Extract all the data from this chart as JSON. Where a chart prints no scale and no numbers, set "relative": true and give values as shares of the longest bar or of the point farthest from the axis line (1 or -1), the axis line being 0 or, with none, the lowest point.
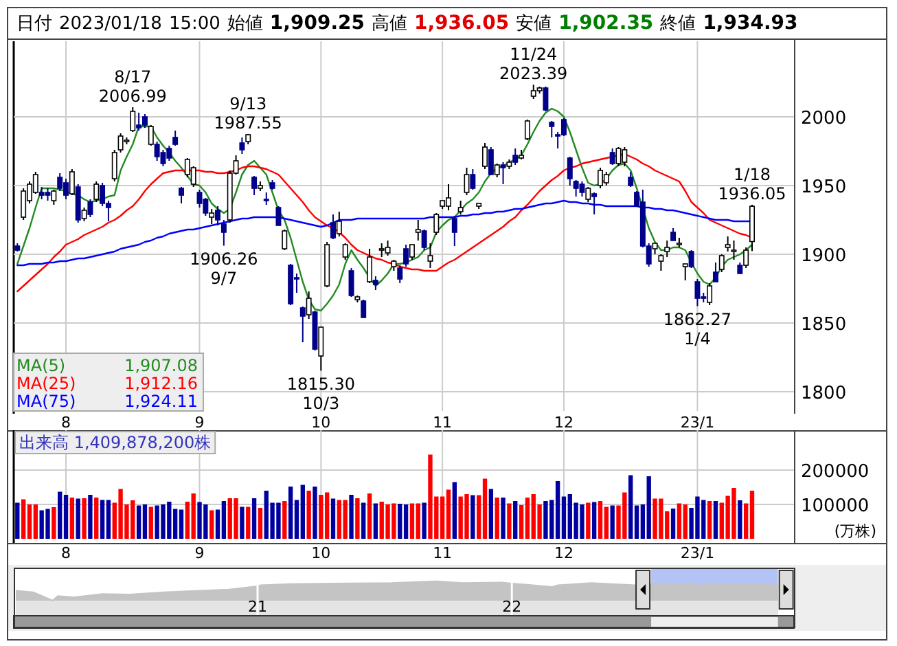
{
  "chart_data": [
    {
      "type": "candlestick",
      "title": "日付 2023/01/18 15:00 始値 1,909.25 高値 1,936.05 安値 1,902.35 終値 1,934.93",
      "categories": [
        null,
        null,
        null,
        null,
        null,
        null,
        null,
        null,
        "8",
        null,
        null,
        null,
        null,
        null,
        null,
        null,
        null,
        null,
        null,
        null,
        null,
        null,
        null,
        null,
        null,
        null,
        null,
        null,
        null,
        null,
        "9",
        null,
        null,
        null,
        null,
        null,
        null,
        null,
        null,
        null,
        null,
        null,
        null,
        null,
        null,
        null,
        null,
        null,
        null,
        null,
        "10",
        null,
        null,
        null,
        null,
        null,
        null,
        null,
        null,
        null,
        null,
        null,
        null,
        null,
        null,
        null,
        null,
        null,
        null,
        null,
        "11",
        null,
        null,
        null,
        null,
        null,
        null,
        null,
        null,
        null,
        null,
        null,
        null,
        null,
        null,
        null,
        null,
        null,
        null,
        null,
        "12",
        null,
        null,
        null,
        null,
        null,
        null,
        null,
        null,
        null,
        null,
        null,
        null,
        null,
        null,
        null,
        null,
        null,
        null,
        null,
        null,
        null,
        "23/1",
        null,
        null,
        null,
        null,
        null,
        null,
        null,
        null,
        null
      ],
      "ohlc": [
        [
          1906,
          1908,
          1902,
          1903
        ],
        [
          1927,
          1948,
          1925,
          1946
        ],
        [
          1939,
          1953,
          1937,
          1951
        ],
        [
          1945,
          1960,
          1944,
          1958
        ],
        [
          1945,
          1949,
          1940,
          1943
        ],
        [
          1945,
          1948,
          1939,
          1943
        ],
        [
          1939,
          1947,
          1936,
          1946
        ],
        [
          1956,
          1959,
          1946,
          1948
        ],
        [
          1952,
          1955,
          1940,
          1943
        ],
        [
          1944,
          1962,
          1943,
          1960
        ],
        [
          1949,
          1951,
          1923,
          1925
        ],
        [
          1926,
          1934,
          1924,
          1932
        ],
        [
          1938,
          1940,
          1927,
          1929
        ],
        [
          1940,
          1953,
          1938,
          1951
        ],
        [
          1950,
          1952,
          1935,
          1937
        ],
        [
          1937,
          1939,
          1924,
          1934
        ],
        [
          1955,
          1976,
          1953,
          1974
        ],
        [
          1976,
          1988,
          1974,
          1986
        ],
        [
          1982,
          1985,
          1980,
          1983
        ],
        [
          1990,
          2006.99,
          1989,
          2004
        ],
        [
          1994,
          2003,
          1990,
          1992
        ],
        [
          2000,
          2002,
          1992,
          1994
        ],
        [
          1980,
          1994,
          1979,
          1993
        ],
        [
          1980,
          1982,
          1968,
          1971
        ],
        [
          1974,
          1976,
          1964,
          1966
        ],
        [
          1977,
          1979,
          1968,
          1970
        ],
        [
          1985,
          1990,
          1979,
          1980
        ],
        [
          1948,
          1949,
          1937,
          1943
        ],
        [
          1958,
          1970,
          1956,
          1969
        ],
        [
          1951,
          1964,
          1949,
          1963
        ],
        [
          1945,
          1947,
          1934,
          1937
        ],
        [
          1940,
          1941,
          1928,
          1930
        ],
        [
          1927,
          1933,
          1922,
          1930
        ],
        [
          1932,
          1935,
          1921,
          1925
        ],
        [
          1922,
          1925,
          1906.26,
          1916
        ],
        [
          1925,
          1961,
          1923,
          1959
        ],
        [
          1959,
          1972,
          1958,
          1968
        ],
        [
          1981,
          1985,
          1973,
          1976
        ],
        [
          1982,
          1987.55,
          1980,
          1987
        ],
        [
          1956,
          1957,
          1943,
          1948
        ],
        [
          1948,
          1953,
          1946,
          1950
        ],
        [
          1940,
          1945,
          1936,
          1939
        ],
        [
          1952,
          1954,
          1947,
          1948
        ],
        [
          1934,
          1935,
          1921,
          1921
        ],
        [
          1904,
          1918,
          1903,
          1917
        ],
        [
          1892,
          1893,
          1863,
          1864
        ],
        [
          1883,
          1886,
          1872,
          1882
        ],
        [
          1861,
          1862,
          1836,
          1855
        ],
        [
          1856,
          1873,
          1853,
          1868
        ],
        [
          1858,
          1859,
          1830,
          1831
        ],
        [
          1826,
          1847,
          1815.3,
          1847
        ],
        [
          1877,
          1909,
          1876,
          1907
        ],
        [
          1923,
          1929,
          1911,
          1912
        ],
        [
          1915,
          1931,
          1913,
          1924
        ],
        [
          1898,
          1908,
          1896,
          1907
        ],
        [
          1888,
          1890,
          1869,
          1870
        ],
        [
          1867,
          1870,
          1865,
          1869
        ],
        [
          1866,
          1867,
          1854,
          1854
        ],
        [
          1880,
          1904,
          1879,
          1898
        ],
        [
          1881,
          1884,
          1874,
          1878
        ],
        [
          1903,
          1908,
          1898,
          1904
        ],
        [
          1901,
          1910,
          1899,
          1905
        ],
        [
          1891,
          1896,
          1888,
          1895
        ],
        [
          1890,
          1892,
          1879,
          1882
        ],
        [
          1904,
          1907,
          1891,
          1893
        ],
        [
          1898,
          1907,
          1896,
          1907
        ],
        [
          1916,
          1925,
          1910,
          1918
        ],
        [
          1917,
          1918,
          1903,
          1905
        ],
        [
          1895,
          1908,
          1890,
          1899
        ],
        [
          1916,
          1930,
          1914,
          1929
        ],
        [
          1935,
          1939,
          1933,
          1939
        ],
        [
          1935,
          1951,
          1932,
          1941
        ],
        [
          1926,
          1928,
          1906,
          1916
        ],
        [
          1931,
          1939,
          1929,
          1934
        ],
        [
          1945,
          1963,
          1943,
          1958
        ],
        [
          1958,
          1962,
          1947,
          1948
        ],
        [
          1935,
          1937,
          1933,
          1937
        ],
        [
          1964,
          1981,
          1962,
          1978
        ],
        [
          1976,
          1978,
          1958,
          1958
        ],
        [
          1958,
          1966,
          1956,
          1965
        ],
        [
          1965,
          1967,
          1951,
          1963
        ],
        [
          1964,
          1969,
          1962,
          1967
        ],
        [
          1972,
          1977,
          1965,
          1967
        ],
        [
          1970,
          1976,
          1969,
          1972
        ],
        [
          1984,
          1998,
          1983,
          1997
        ],
        [
          2015,
          2023.39,
          2013,
          2019
        ],
        [
          2019,
          2022,
          2017,
          2021
        ],
        [
          2021,
          2022,
          2004,
          2005
        ],
        [
          1996,
          1997,
          1985,
          1993
        ],
        [
          1987,
          1989,
          1977,
          1986
        ],
        [
          1998,
          1999,
          1986,
          1987
        ],
        [
          1970,
          1971,
          1950,
          1955
        ],
        [
          1953,
          1954,
          1942,
          1948
        ],
        [
          1951,
          1953,
          1942,
          1945
        ],
        [
          1940,
          1949,
          1938,
          1948
        ],
        [
          1944,
          1945,
          1929,
          1942
        ],
        [
          1950,
          1963,
          1948,
          1961
        ],
        [
          1952,
          1960,
          1950,
          1958
        ],
        [
          1974,
          1977,
          1965,
          1966
        ],
        [
          1966,
          1978,
          1964,
          1977
        ],
        [
          1967,
          1978,
          1964,
          1976
        ],
        [
          1956,
          1960,
          1949,
          1950
        ],
        [
          1945,
          1946,
          1935,
          1935
        ],
        [
          1938,
          1947,
          1905,
          1906
        ],
        [
          1906,
          1908,
          1891,
          1893
        ],
        [
          1904,
          1908,
          1900,
          1908
        ],
        [
          1895,
          1900,
          1888,
          1899
        ],
        [
          1902,
          1910,
          1898,
          1905
        ],
        [
          1916,
          1919,
          1910,
          1910
        ],
        [
          1907,
          1912,
          1905,
          1908
        ],
        [
          1891,
          1893,
          1881,
          1893
        ],
        [
          1902,
          1903,
          1890,
          1891
        ],
        [
          1880,
          1882,
          1862.27,
          1868
        ],
        [
          1869,
          1872,
          1865,
          1868
        ],
        [
          1865,
          1879,
          1863,
          1877
        ],
        [
          1887,
          1894,
          1880,
          1880
        ],
        [
          1889,
          1900,
          1887,
          1899
        ],
        [
          1905,
          1913,
          1902,
          1907
        ],
        [
          1903,
          1910,
          1896,
          1903
        ],
        [
          1892,
          1894,
          1886,
          1886
        ],
        [
          1892,
          1905,
          1890,
          1903
        ],
        [
          1909.25,
          1936.05,
          1902.35,
          1934.93
        ]
      ],
      "series": [
        {
          "name": "MA(5) 1,907.08",
          "type": "line",
          "color": "#228b22",
          "values": [
            1893,
            1906,
            1919,
            1934,
            1948,
            1948,
            1948,
            1947,
            1946,
            1944,
            1943,
            1940,
            1938,
            1939,
            1940,
            1942,
            1943,
            1961,
            1971,
            1980,
            1993,
            1993,
            1993,
            1985,
            1979,
            1974,
            1968,
            1963,
            1957,
            1951,
            1950,
            1945,
            1937,
            1933,
            1930,
            1933,
            1945,
            1958,
            1965,
            1968,
            1963,
            1958,
            1945,
            1932,
            1925,
            1912,
            1896,
            1880,
            1867,
            1860,
            1859,
            1864,
            1870,
            1878,
            1893,
            1903,
            1896,
            1890,
            1883,
            1877,
            1881,
            1886,
            1893,
            1893,
            1894,
            1896,
            1898,
            1903,
            1905,
            1916,
            1921,
            1925,
            1927,
            1932,
            1937,
            1940,
            1945,
            1953,
            1959,
            1963,
            1964,
            1967,
            1969,
            1972,
            1980,
            1989,
            1997,
            2003,
            2006,
            2004,
            2000,
            1989,
            1976,
            1963,
            1952,
            1950,
            1951,
            1955,
            1961,
            1965,
            1966,
            1961,
            1948,
            null,
            1919,
            1909,
            1903,
            1903,
            1905,
            1905,
            1903,
            1894,
            1886,
            1880,
            1878,
            1883,
            1891,
            1896,
            1898,
            1900,
            1903,
            1907
          ]
        },
        {
          "name": "MA(25) 1,912.16",
          "type": "line",
          "color": "#ff0000",
          "values": [
            1873,
            1877,
            1881,
            1885,
            1889,
            1893,
            1898,
            1902,
            1907,
            1909,
            1911,
            1914,
            1916,
            1918,
            1920,
            1923,
            1925,
            1928,
            1932,
            1935,
            1940,
            1946,
            1951,
            1955,
            1959,
            1960,
            1961,
            1961,
            1961,
            1961,
            1961,
            1960,
            1960,
            1959,
            1959,
            1960,
            1961,
            1963,
            1964,
            1964,
            1963,
            1962,
            1960,
            1958,
            1953,
            1948,
            1943,
            1938,
            1932,
            1927,
            1924,
            1921,
            1919,
            1916,
            1912,
            1907,
            1903,
            1901,
            1899,
            1897,
            1896,
            1894,
            1893,
            1891,
            1890,
            1889,
            1889,
            1888,
            1888,
            1888,
            1891,
            1894,
            1896,
            1899,
            1902,
            1905,
            1908,
            1911,
            1914,
            1917,
            1920,
            1924,
            1927,
            1932,
            1936,
            1941,
            1946,
            1950,
            1954,
            1957,
            1961,
            1963,
            1964,
            1966,
            1967,
            1968,
            1969,
            1970,
            1971,
            1972,
            1973,
            1971,
            1969,
            1966,
            1964,
            1961,
            1959,
            1957,
            1955,
            1953,
            1946,
            1938,
            1934,
            1930,
            1925,
            1923,
            1921,
            1919,
            1917,
            1915,
            1914,
            1912
          ]
        },
        {
          "name": "MA(75) 1,924.11",
          "type": "line",
          "color": "#0000ff",
          "values": [
            1892,
            1892,
            1893,
            1893,
            1893,
            1894,
            1894,
            1895,
            1895,
            1896,
            1897,
            1897,
            1898,
            1899,
            1900,
            1901,
            1902,
            1904,
            1905,
            1906,
            1907,
            1909,
            1910,
            1912,
            1913,
            1915,
            1916,
            1917,
            1918,
            1918,
            1919,
            1920,
            1921,
            1922,
            1923,
            1924,
            1925,
            1926,
            1926,
            1927,
            1927,
            1927,
            1927,
            1927,
            1926,
            1925,
            1924,
            1923,
            1922,
            1921,
            1920,
            1921,
            1923,
            1925,
            1925,
            1925,
            1926,
            1926,
            1926,
            1926,
            1926,
            1926,
            1926,
            1926,
            1926,
            1926,
            1926,
            1926,
            1927,
            1927,
            1927,
            1927,
            1927,
            1928,
            1928,
            1929,
            1929,
            1930,
            1930,
            1931,
            1931,
            1932,
            1933,
            1933,
            1934,
            1935,
            1936,
            1937,
            1937,
            1938,
            1939,
            1938,
            1938,
            1937,
            1937,
            1936,
            1936,
            1935,
            1935,
            1935,
            1935,
            1935,
            1935,
            1934,
            1934,
            1933,
            1933,
            1932,
            1932,
            1931,
            1930,
            1929,
            1928,
            1927,
            1926,
            1925,
            1925,
            1925,
            1924,
            1924,
            1924,
            1924
          ]
        }
      ],
      "ylim": [
        1786,
        2055
      ],
      "yticks": [
        1800,
        1850,
        1900,
        1950,
        2000
      ],
      "grid": true,
      "value_labels": [
        null,
        null,
        null,
        null,
        null,
        null,
        null,
        null,
        null,
        null,
        null,
        null,
        null,
        null,
        null,
        null,
        null,
        null,
        null,
        "8/17\n2006.99",
        null,
        null,
        null,
        null,
        null,
        null,
        null,
        null,
        null,
        null,
        null,
        null,
        null,
        null,
        "1906.26\n9/7",
        null,
        null,
        null,
        "9/13\n1987.55",
        null,
        null,
        null,
        null,
        null,
        null,
        null,
        null,
        null,
        null,
        null,
        "1815.30\n10/3",
        null,
        null,
        null,
        null,
        null,
        null,
        null,
        null,
        null,
        null,
        null,
        null,
        null,
        null,
        null,
        null,
        null,
        null,
        null,
        null,
        null,
        null,
        null,
        null,
        null,
        null,
        null,
        null,
        null,
        null,
        null,
        null,
        null,
        null,
        "11/24\n2023.39",
        null,
        null,
        null,
        null,
        null,
        null,
        null,
        null,
        null,
        null,
        null,
        null,
        null,
        null,
        null,
        null,
        null,
        null,
        null,
        null,
        null,
        null,
        null,
        null,
        null,
        null,
        "1862.27\n1/4",
        null,
        null,
        null,
        null,
        null,
        null,
        null,
        null,
        "1/18\n1936.05"
      ]
    },
    {
      "type": "bar",
      "title": "出来高 1,409,878,200株",
      "ylabel": "(万株)",
      "categories": [
        null,
        null,
        null,
        null,
        null,
        null,
        null,
        null,
        "8",
        null,
        null,
        null,
        null,
        null,
        null,
        null,
        null,
        null,
        null,
        null,
        null,
        null,
        null,
        null,
        null,
        null,
        null,
        null,
        null,
        null,
        "9",
        null,
        null,
        null,
        null,
        null,
        null,
        null,
        null,
        null,
        null,
        null,
        null,
        null,
        null,
        null,
        null,
        null,
        null,
        null,
        "10",
        null,
        null,
        null,
        null,
        null,
        null,
        null,
        null,
        null,
        null,
        null,
        null,
        null,
        null,
        null,
        null,
        null,
        null,
        null,
        "11",
        null,
        null,
        null,
        null,
        null,
        null,
        null,
        null,
        null,
        null,
        null,
        null,
        null,
        null,
        null,
        null,
        null,
        null,
        null,
        "12",
        null,
        null,
        null,
        null,
        null,
        null,
        null,
        null,
        null,
        null,
        null,
        null,
        null,
        null,
        null,
        null,
        null,
        null,
        null,
        null,
        null,
        "23/1",
        null,
        null,
        null,
        null,
        null,
        null,
        null,
        null,
        null
      ],
      "values": [
        105000,
        115000,
        100000,
        100000,
        83000,
        87000,
        92000,
        137000,
        128000,
        120000,
        117000,
        118000,
        128000,
        120000,
        113000,
        113000,
        105000,
        145000,
        100000,
        112000,
        97000,
        100000,
        93000,
        97000,
        100000,
        108000,
        87000,
        85000,
        108000,
        132000,
        107000,
        100000,
        83000,
        85000,
        110000,
        118000,
        118000,
        93000,
        93000,
        118000,
        90000,
        140000,
        105000,
        105000,
        110000,
        152000,
        113000,
        157000,
        140000,
        152000,
        128000,
        135000,
        117000,
        113000,
        113000,
        128000,
        118000,
        105000,
        132000,
        103000,
        108000,
        100000,
        103000,
        102000,
        100000,
        103000,
        103000,
        105000,
        245000,
        123000,
        123000,
        143000,
        165000,
        123000,
        130000,
        127000,
        127000,
        175000,
        145000,
        120000,
        120000,
        103000,
        110000,
        98000,
        120000,
        130000,
        100000,
        110000,
        113000,
        168000,
        123000,
        130000,
        105000,
        100000,
        105000,
        107000,
        110000,
        93000,
        97000,
        97000,
        135000,
        185000,
        97000,
        100000,
        182000,
        117000,
        117000,
        80000,
        88000,
        103000,
        100000,
        90000,
        123000,
        113000,
        110000,
        110000,
        105000,
        125000,
        148000,
        112000,
        103000,
        140000
      ],
      "colors": [
        "#0000a0",
        "#ff0000",
        "#ff0000",
        "#ff0000",
        "#0000a0",
        "#0000a0",
        "#ff0000",
        "#0000a0",
        "#0000a0",
        "#ff0000",
        "#0000a0",
        "#ff0000",
        "#0000a0",
        "#ff0000",
        "#0000a0",
        "#0000a0",
        "#ff0000",
        "#ff0000",
        "#ff0000",
        "#ff0000",
        "#0000a0",
        "#0000a0",
        "#ff0000",
        "#0000a0",
        "#0000a0",
        "#0000a0",
        "#0000a0",
        "#0000a0",
        "#ff0000",
        "#ff0000",
        "#0000a0",
        "#0000a0",
        "#ff0000",
        "#0000a0",
        "#0000a0",
        "#ff0000",
        "#ff0000",
        "#0000a0",
        "#ff0000",
        "#0000a0",
        "#ff0000",
        "#0000a0",
        "#0000a0",
        "#0000a0",
        "#ff0000",
        "#0000a0",
        "#0000a0",
        "#0000a0",
        "#ff0000",
        "#0000a0",
        "#ff0000",
        "#ff0000",
        "#0000a0",
        "#ff0000",
        "#ff0000",
        "#0000a0",
        "#ff0000",
        "#0000a0",
        "#ff0000",
        "#0000a0",
        "#ff0000",
        "#ff0000",
        "#ff0000",
        "#0000a0",
        "#0000a0",
        "#ff0000",
        "#ff0000",
        "#0000a0",
        "#ff0000",
        "#ff0000",
        "#ff0000",
        "#ff0000",
        "#0000a0",
        "#ff0000",
        "#ff0000",
        "#0000a0",
        "#ff0000",
        "#ff0000",
        "#0000a0",
        "#ff0000",
        "#0000a0",
        "#ff0000",
        "#0000a0",
        "#ff0000",
        "#ff0000",
        "#ff0000",
        "#ff0000",
        "#0000a0",
        "#0000a0",
        "#0000a0",
        "#0000a0",
        "#0000a0",
        "#0000a0",
        "#0000a0",
        "#ff0000",
        "#0000a0",
        "#ff0000",
        "#ff0000",
        "#0000a0",
        "#ff0000",
        "#ff0000",
        "#0000a0",
        "#0000a0",
        "#0000a0",
        "#0000a0",
        "#ff0000",
        "#ff0000",
        "#ff0000",
        "#0000a0",
        "#ff0000",
        "#ff0000",
        "#0000a0",
        "#0000a0",
        "#0000a0",
        "#ff0000",
        "#0000a0",
        "#ff0000",
        "#ff0000",
        "#ff0000",
        "#0000a0",
        "#ff0000",
        "#ff0000"
      ],
      "ylim": [
        0,
        316000
      ],
      "yticks": [
        100000,
        200000
      ],
      "grid": true
    },
    {
      "type": "area",
      "relative": true,
      "tick_labels": "x",
      "x": [
        "2020-01-20",
        "2020-02-14",
        "2020-03-13",
        "2020-03-20",
        "2020-04-13",
        "2020-05-23",
        "2020-07-01",
        "2020-08-19",
        "2020-11-21",
        "2021-01-01",
        "2021-01-05",
        "2021-02-17",
        "2021-04-21",
        "2021-07-12",
        "2021-09-14",
        "2021-10-23",
        "2021-12-17",
        "2022-01-01",
        "2022-02-28",
        "2022-03-08",
        "2022-04-25",
        "2022-06-28",
        "2022-07-30",
        "2022-10-01",
        "2022-11-02",
        "2023-01-18"
      ],
      "series": [
        {
          "color": "#c4c4c4",
          "values": [
            0.51,
            0.43,
            0,
            0.23,
            0.17,
            0.34,
            0.31,
            0.43,
            0.57,
            0.74,
            0.8,
            0.86,
            0.89,
            0.91,
            1,
            0.91,
            0.94,
            0.89,
            0.71,
            0.8,
            0.91,
            0.8,
            0.89,
            0.8,
            0.86,
            0.8
          ]
        }
      ],
      "xlim": [
        "2020-01-17",
        "2023-02-10"
      ],
      "xticks": [
        {
          "value": "2021-01-01",
          "label": "21"
        },
        {
          "value": "2022-01-01",
          "label": "22"
        }
      ],
      "bands": [
        {
          "axis": "x",
          "from": "2022-07-20",
          "to": "2023-01-18",
          "color": "#b4c3f5"
        }
      ]
    }
  ]
}
